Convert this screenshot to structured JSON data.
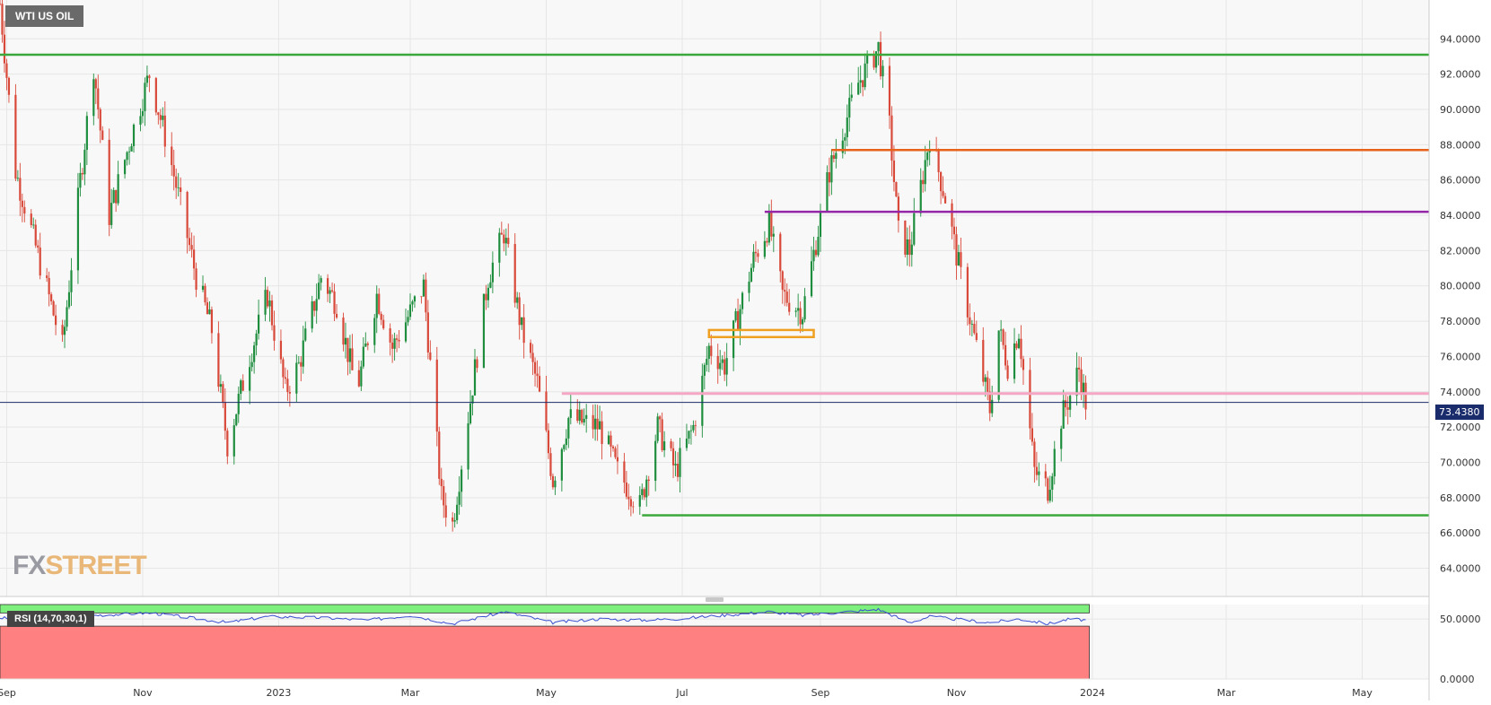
{
  "symbol": "WTI US OIL",
  "watermark": {
    "part1": "FX",
    "part2": "STREET"
  },
  "current_price": "73.4380",
  "rsi_label": "RSI (14,70,30,1)",
  "colors": {
    "up": "#1e8e3e",
    "down": "#d9493a",
    "green_line": "#3aa83a",
    "orange_line": "#e8621c",
    "purple_line": "#9426a8",
    "pink_line": "#f4a6c4",
    "box": "#f0a020",
    "price_line": "#1a2c6b",
    "rsi_line": "#3a4fd0",
    "rsi_overbought": "#7ef07e",
    "rsi_oversold": "#ff8080"
  },
  "chart_data": {
    "type": "line",
    "description_type": "candlestick",
    "price_axis": {
      "range": [
        62.4,
        96.2
      ],
      "ticks": [
        "94.0000",
        "92.0000",
        "90.0000",
        "88.0000",
        "86.0000",
        "84.0000",
        "82.0000",
        "80.0000",
        "78.0000",
        "76.0000",
        "74.0000",
        "72.0000",
        "70.0000",
        "68.0000",
        "66.0000",
        "64.0000"
      ]
    },
    "rsi_axis": {
      "range": [
        0,
        62
      ],
      "ticks": [
        "50.0000",
        "0.0000"
      ]
    },
    "time_axis": [
      "Sep",
      "Nov",
      "2023",
      "Mar",
      "May",
      "Jul",
      "Sep",
      "Nov",
      "2024",
      "Mar",
      "May"
    ],
    "price_path": [
      [
        "2022-08-29",
        96.0
      ],
      [
        "2022-09-05",
        86.5
      ],
      [
        "2022-09-26",
        76.5
      ],
      [
        "2022-10-04",
        86.0
      ],
      [
        "2022-10-10",
        92.5
      ],
      [
        "2022-10-17",
        84.0
      ],
      [
        "2022-10-27",
        88.5
      ],
      [
        "2022-11-04",
        92.0
      ],
      [
        "2022-11-12",
        88.0
      ],
      [
        "2022-11-25",
        80.5
      ],
      [
        "2022-12-02",
        77.5
      ],
      [
        "2022-12-09",
        71.0
      ],
      [
        "2022-12-19",
        76.0
      ],
      [
        "2022-12-27",
        79.5
      ],
      [
        "2023-01-04",
        74.0
      ],
      [
        "2023-01-10",
        75.5
      ],
      [
        "2023-01-20",
        80.5
      ],
      [
        "2023-01-27",
        79.0
      ],
      [
        "2023-02-05",
        74.0
      ],
      [
        "2023-02-14",
        79.5
      ],
      [
        "2023-02-21",
        76.5
      ],
      [
        "2023-03-01",
        78.5
      ],
      [
        "2023-03-07",
        80.0
      ],
      [
        "2023-03-15",
        68.0
      ],
      [
        "2023-03-20",
        66.5
      ],
      [
        "2023-03-28",
        73.5
      ],
      [
        "2023-04-05",
        80.5
      ],
      [
        "2023-04-12",
        83.0
      ],
      [
        "2023-04-20",
        77.5
      ],
      [
        "2023-04-27",
        74.5
      ],
      [
        "2023-05-04",
        69.0
      ],
      [
        "2023-05-11",
        72.5
      ],
      [
        "2023-05-25",
        72.0
      ],
      [
        "2023-06-02",
        69.5
      ],
      [
        "2023-06-12",
        67.5
      ],
      [
        "2023-06-20",
        72.0
      ],
      [
        "2023-06-28",
        69.5
      ],
      [
        "2023-07-06",
        72.0
      ],
      [
        "2023-07-13",
        76.5
      ],
      [
        "2023-07-20",
        75.5
      ],
      [
        "2023-08-02",
        81.5
      ],
      [
        "2023-08-09",
        83.5
      ],
      [
        "2023-08-15",
        79.5
      ],
      [
        "2023-08-24",
        78.5
      ],
      [
        "2023-09-05",
        86.5
      ],
      [
        "2023-09-18",
        91.5
      ],
      [
        "2023-09-27",
        93.5
      ],
      [
        "2023-10-02",
        89.0
      ],
      [
        "2023-10-06",
        83.0
      ],
      [
        "2023-10-11",
        82.0
      ],
      [
        "2023-10-20",
        88.5
      ],
      [
        "2023-10-27",
        85.0
      ],
      [
        "2023-11-03",
        80.5
      ],
      [
        "2023-11-10",
        76.5
      ],
      [
        "2023-11-16",
        73.0
      ],
      [
        "2023-11-20",
        77.5
      ],
      [
        "2023-11-24",
        75.5
      ],
      [
        "2023-11-29",
        77.5
      ],
      [
        "2023-12-06",
        69.5
      ],
      [
        "2023-12-12",
        68.5
      ],
      [
        "2023-12-18",
        72.5
      ],
      [
        "2023-12-22",
        73.8
      ],
      [
        "2023-12-26",
        75.3
      ],
      [
        "2023-12-29",
        73.4
      ]
    ],
    "levels": [
      {
        "price": 93.1,
        "color": "green_line",
        "from": "2022-08-29"
      },
      {
        "price": 87.7,
        "color": "orange_line",
        "from": "2023-09-06"
      },
      {
        "price": 84.2,
        "color": "purple_line",
        "from": "2023-08-07"
      },
      {
        "price": 73.9,
        "color": "pink_line",
        "from": "2023-05-08"
      },
      {
        "price": 73.4,
        "color": "price_line",
        "from": "2022-08-29"
      },
      {
        "price": 67.0,
        "color": "green_line",
        "from": "2023-06-13"
      }
    ],
    "zones": [
      {
        "from": "2023-07-13",
        "to": "2023-08-29",
        "low": 77.1,
        "high": 77.5,
        "color": "box"
      }
    ],
    "rsi": {
      "overbought_band": [
        55,
        62
      ],
      "oversold_band": [
        0,
        44
      ],
      "path": [
        [
          "2022-08-29",
          51
        ],
        [
          "2022-09-26",
          47
        ],
        [
          "2022-10-10",
          53
        ],
        [
          "2022-11-05",
          55
        ],
        [
          "2022-12-09",
          47
        ],
        [
          "2022-12-27",
          52
        ],
        [
          "2023-01-20",
          51
        ],
        [
          "2023-02-10",
          49
        ],
        [
          "2023-03-01",
          53
        ],
        [
          "2023-03-20",
          46
        ],
        [
          "2023-04-12",
          56
        ],
        [
          "2023-05-04",
          47
        ],
        [
          "2023-05-25",
          50
        ],
        [
          "2023-06-12",
          49
        ],
        [
          "2023-06-28",
          50
        ],
        [
          "2023-08-09",
          56
        ],
        [
          "2023-08-24",
          53
        ],
        [
          "2023-09-27",
          58
        ],
        [
          "2023-10-11",
          47
        ],
        [
          "2023-10-20",
          52
        ],
        [
          "2023-11-16",
          47
        ],
        [
          "2023-11-29",
          50
        ],
        [
          "2023-12-12",
          46
        ],
        [
          "2023-12-22",
          50
        ],
        [
          "2023-12-29",
          49
        ]
      ]
    }
  }
}
